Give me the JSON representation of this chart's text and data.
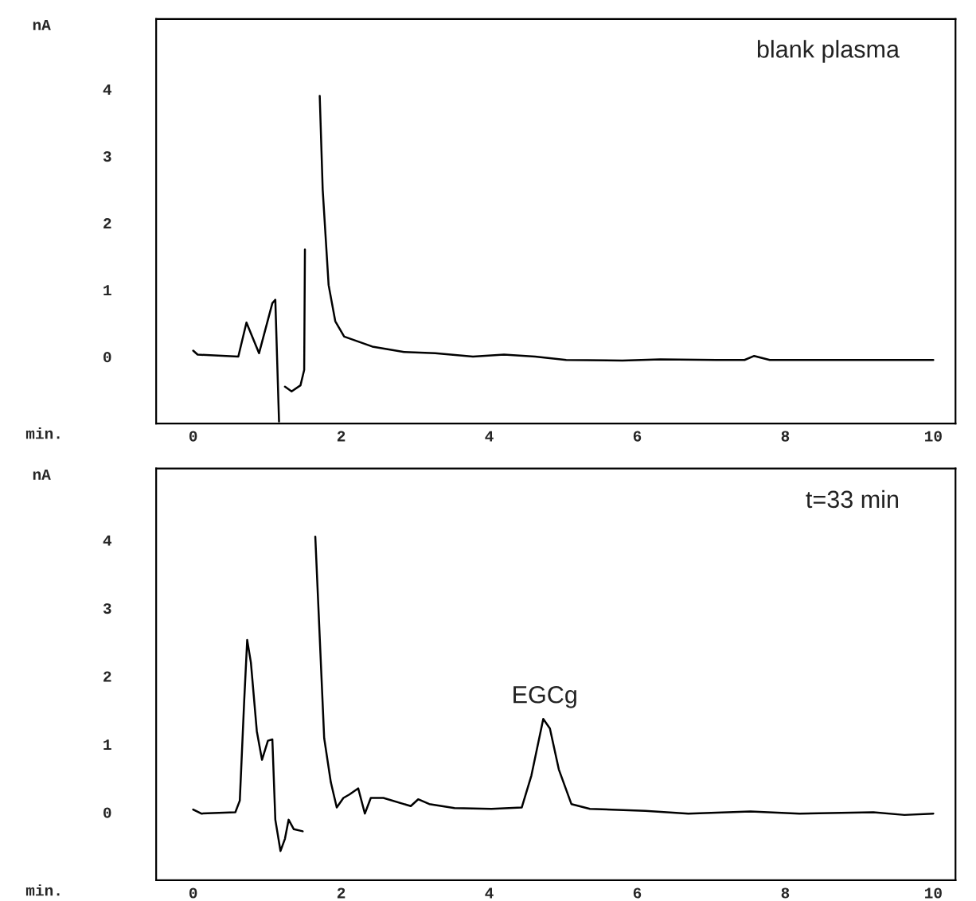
{
  "chart_data": [
    {
      "type": "line",
      "xlabel": "min.",
      "ylabel": "nA",
      "annotations": [
        "blank plasma"
      ],
      "xlim": [
        -0.5,
        10.3
      ],
      "ylim": [
        -1,
        5.05
      ],
      "xticks": [
        0,
        2,
        4,
        6,
        8,
        10
      ],
      "yticks": [
        0,
        1,
        2,
        3,
        4
      ],
      "grid": false,
      "legend": false,
      "series": [
        {
          "color": "#000000",
          "x": [
            0,
            0.06,
            0.61,
            0.72,
            0.89,
            1.07,
            1.11,
            1.16,
            1.2,
            1.24,
            1.33,
            1.45,
            1.5,
            1.51,
            1.53,
            1.65,
            1.71,
            1.75,
            1.83,
            1.92,
            2.04,
            2.42,
            2.85,
            3.27,
            3.78,
            4.2,
            4.62,
            5.04,
            5.8,
            6.31,
            7.07,
            7.45,
            7.58,
            7.79,
            10
          ],
          "values": [
            0.09,
            0.03,
            0,
            0.51,
            0.05,
            0.8,
            0.85,
            -0.97,
            null,
            -0.45,
            -0.52,
            -0.43,
            -0.2,
            1.6,
            null,
            null,
            3.9,
            2.5,
            1.07,
            0.53,
            0.3,
            0.15,
            0.07,
            0.05,
            0,
            0.03,
            0,
            -0.05,
            -0.06,
            -0.04,
            -0.05,
            -0.05,
            0.01,
            -0.05,
            -0.05
          ]
        }
      ]
    },
    {
      "type": "line",
      "xlabel": "min.",
      "ylabel": "nA",
      "annotations": [
        "t=33 min",
        {
          "text": "EGCg",
          "x": 4.75,
          "y": 1.4
        }
      ],
      "xlim": [
        -0.5,
        10.3
      ],
      "ylim": [
        -1,
        5.05
      ],
      "xticks": [
        0,
        2,
        4,
        6,
        8,
        10
      ],
      "yticks": [
        0,
        1,
        2,
        3,
        4
      ],
      "grid": false,
      "legend": false,
      "series": [
        {
          "color": "#000000",
          "x": [
            0,
            0.11,
            0.57,
            0.63,
            0.69,
            0.73,
            0.78,
            0.86,
            0.93,
            1.01,
            1.07,
            1.11,
            1.18,
            1.24,
            1.29,
            1.36,
            1.48,
            1.5,
            1.61,
            1.65,
            1.71,
            1.77,
            1.86,
            1.94,
            2.03,
            2.11,
            2.23,
            2.32,
            2.4,
            2.57,
            2.94,
            3.04,
            3.19,
            3.53,
            4.03,
            4.44,
            4.57,
            4.73,
            4.82,
            4.94,
            5.11,
            5.36,
            6.11,
            6.69,
            7.53,
            8.19,
            9.19,
            9.61,
            10
          ],
          "values": [
            0.04,
            -0.02,
            0,
            0.17,
            1.65,
            2.53,
            2.2,
            1.19,
            0.77,
            1.05,
            1.07,
            -0.11,
            -0.57,
            -0.39,
            -0.11,
            -0.25,
            -0.28,
            null,
            null,
            4.05,
            2.57,
            1.09,
            0.44,
            0.07,
            0.21,
            0.26,
            0.35,
            -0.02,
            0.21,
            0.21,
            0.09,
            0.19,
            0.12,
            0.06,
            0.05,
            0.07,
            0.54,
            1.37,
            1.23,
            0.63,
            0.12,
            0.05,
            0.02,
            -0.02,
            0.01,
            -0.02,
            0,
            -0.04,
            -0.02
          ]
        }
      ]
    }
  ]
}
